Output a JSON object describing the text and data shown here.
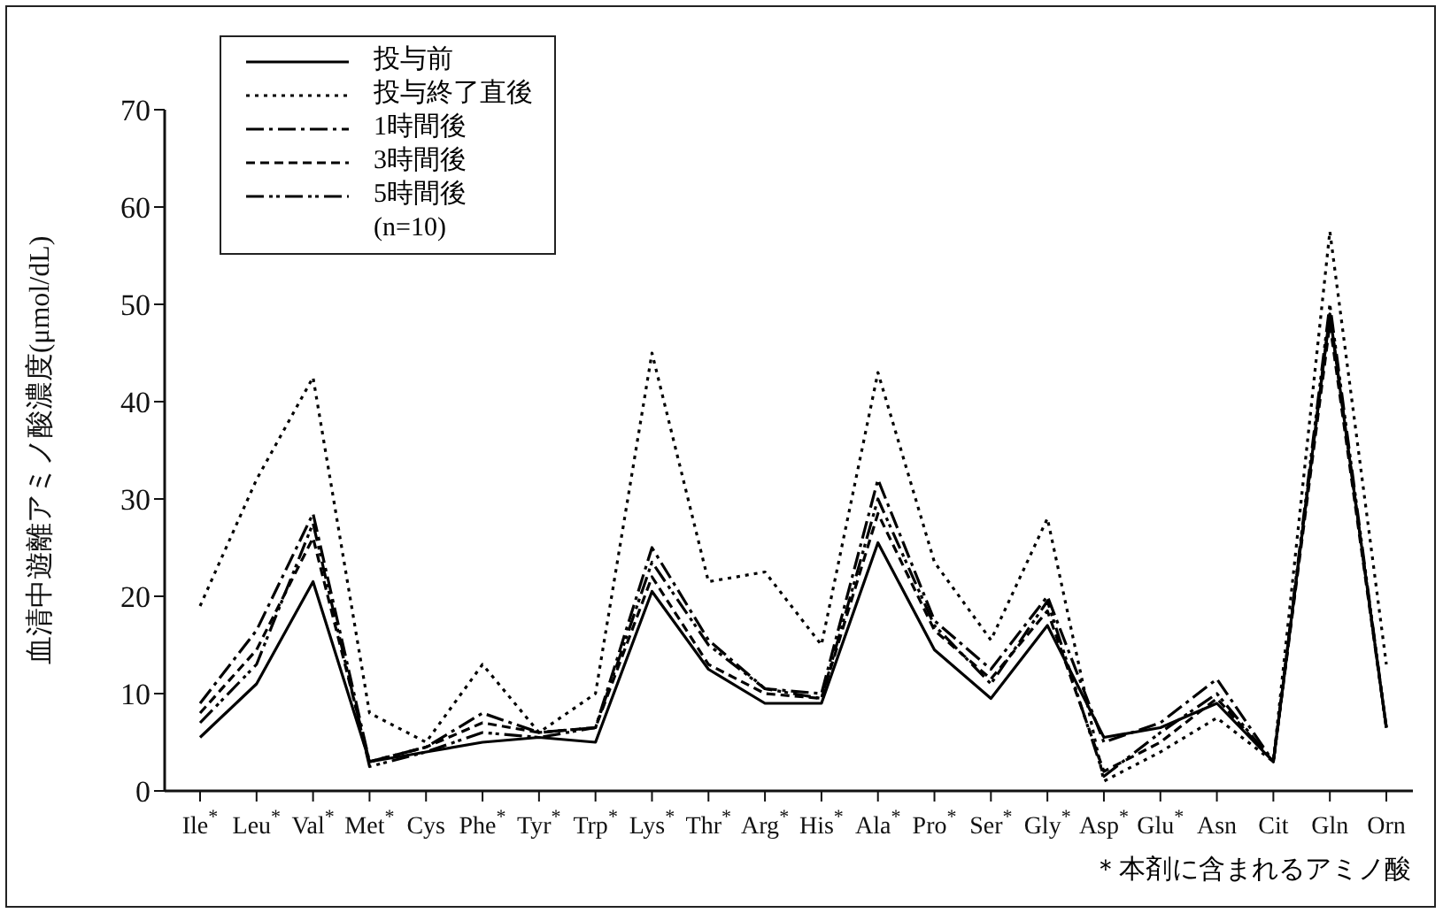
{
  "chart_data": {
    "type": "line",
    "ylabel": "血清中遊離アミノ酸濃度(μmol/dL)",
    "legend_title": "(n=10)",
    "annotations": [
      "＊本剤に含まれるアミノ酸"
    ],
    "categories": [
      "Ile$^{*}$",
      "Leu$^{*}$",
      "Val$^{*}$",
      "Met$^{*}$",
      "Cys",
      "Phe$^{*}$",
      "Tyr$^{*}$",
      "Trp$^{*}$",
      "Lys$^{*}$",
      "Thr$^{*}$",
      "Arg$^{*}$",
      "His$^{*}$",
      "Ala$^{*}$",
      "Pro$^{*}$",
      "Ser$^{*}$",
      "Gly$^{*}$",
      "Asp$^{*}$",
      "Glu$^{*}$",
      "Asn",
      "Cit",
      "Gln",
      "Orn"
    ],
    "ylim": [
      0,
      70
    ],
    "yticks": [
      0,
      10,
      20,
      30,
      40,
      50,
      60,
      70
    ],
    "legend": "top left",
    "grid": false,
    "marker": "none",
    "series": [
      {
        "name": "投与前",
        "color": "#000000",
        "line_style": "solid",
        "values": [
          5.5,
          11,
          21.5,
          3,
          4,
          5,
          5.5,
          5,
          20.5,
          12.5,
          9,
          9,
          25.5,
          14.5,
          9.5,
          17,
          5.5,
          6.5,
          9,
          3,
          49,
          6.5
        ]
      },
      {
        "name": "投与終了直後",
        "color": "#000000",
        "line_style": "dotted",
        "values": [
          19,
          32,
          42.5,
          8,
          5,
          13,
          6,
          10,
          45,
          21.5,
          22.5,
          15,
          43,
          23.5,
          15.5,
          28,
          1,
          4,
          7.5,
          3,
          57.5,
          13
        ]
      },
      {
        "name": "1時間後",
        "color": "#000000",
        "line_style": "dashdot",
        "values": [
          9,
          16.5,
          28.5,
          3,
          4.5,
          8,
          6,
          6.5,
          25,
          15.5,
          10.5,
          10,
          32,
          17.5,
          12.5,
          20,
          5,
          7,
          11.5,
          3,
          49,
          6.5
        ]
      },
      {
        "name": "3時間後",
        "color": "#000000",
        "line_style": "dashed",
        "values": [
          8,
          14.5,
          26,
          3,
          4.5,
          7,
          6,
          6.5,
          22,
          13,
          10,
          9.5,
          28.5,
          16.5,
          11.5,
          18.5,
          2,
          5,
          9.5,
          3,
          48,
          6.5
        ]
      },
      {
        "name": "5時間後",
        "color": "#000000",
        "line_style": "dashdotdot",
        "values": [
          7,
          13,
          27.5,
          2.5,
          4,
          6,
          5.5,
          6.5,
          23.5,
          15,
          10.5,
          9.5,
          30,
          17,
          11,
          19.5,
          1.5,
          6,
          10,
          3,
          50,
          6.5
        ]
      }
    ]
  }
}
